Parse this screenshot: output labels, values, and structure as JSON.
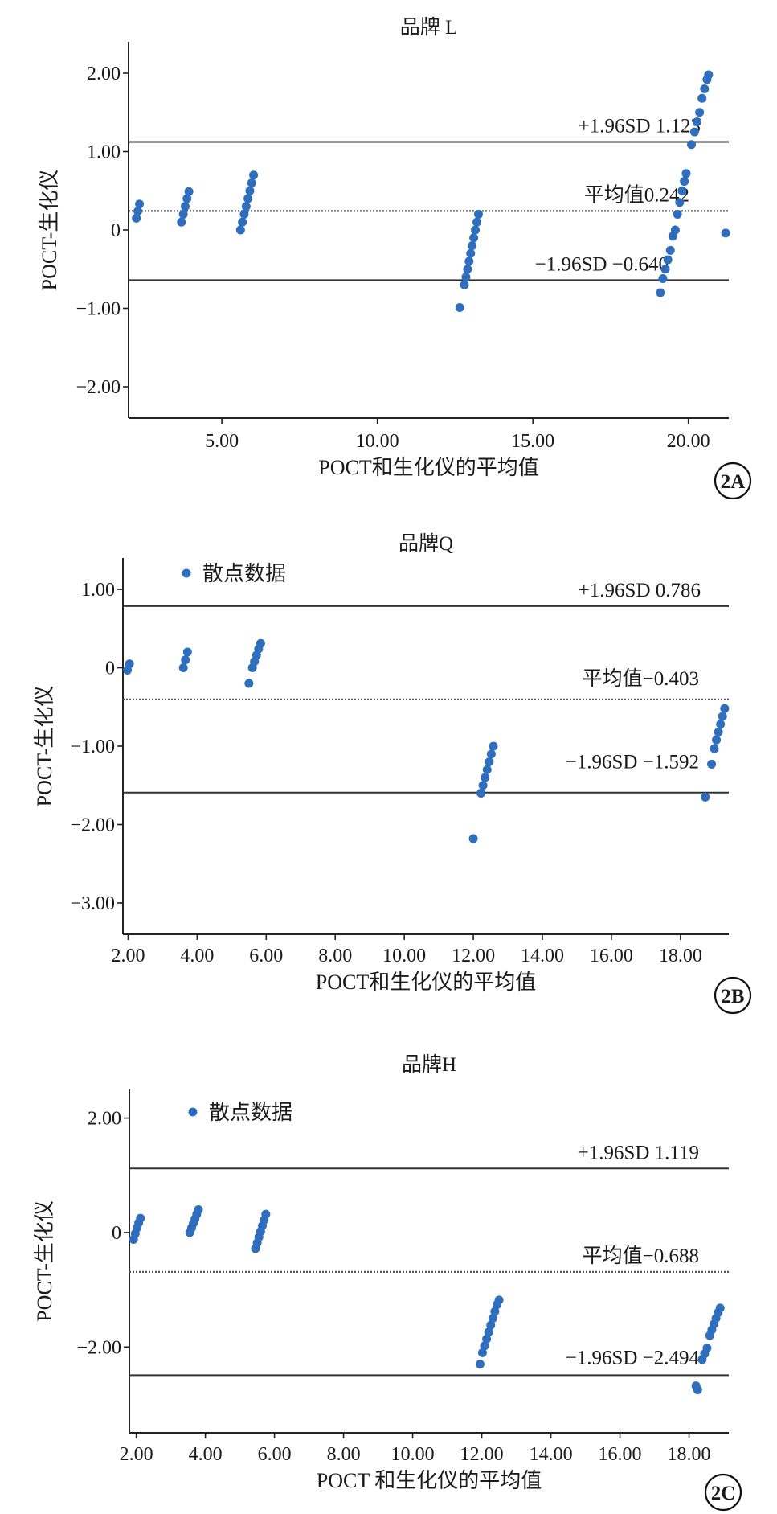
{
  "chart_data": [
    {
      "type": "scatter",
      "panel_label": "2A",
      "title": "品牌 L",
      "xlabel": "POCT和生化仪的平均值",
      "ylabel": "POCT-生化仪",
      "xlim": [
        2.0,
        21.3
      ],
      "ylim": [
        -2.4,
        2.4
      ],
      "xticks": [
        5,
        10,
        15,
        20
      ],
      "xtick_labels": [
        "5.00",
        "10.00",
        "15.00",
        "20.00"
      ],
      "yticks": [
        2,
        1,
        0,
        -1,
        -2
      ],
      "ytick_labels": [
        "2.00",
        "1.00",
        "0",
        "−1.00",
        "−2.00"
      ],
      "legend": "",
      "ref_lines": [
        {
          "label": "+1.96SD 1.123",
          "value": 1.123,
          "style": "solid"
        },
        {
          "label": "平均值0.242",
          "value": 0.242,
          "style": "dotted"
        },
        {
          "label": "−1.96SD −0.640",
          "value": -0.64,
          "style": "solid"
        }
      ],
      "color": "#2f6dbd",
      "points": [
        [
          2.25,
          0.15
        ],
        [
          2.3,
          0.24
        ],
        [
          2.35,
          0.33
        ],
        [
          3.7,
          0.1
        ],
        [
          3.76,
          0.2
        ],
        [
          3.82,
          0.3
        ],
        [
          3.88,
          0.4
        ],
        [
          3.94,
          0.49
        ],
        [
          5.6,
          0.0
        ],
        [
          5.66,
          0.1
        ],
        [
          5.72,
          0.2
        ],
        [
          5.78,
          0.3
        ],
        [
          5.84,
          0.4
        ],
        [
          5.9,
          0.5
        ],
        [
          5.96,
          0.6
        ],
        [
          6.02,
          0.7
        ],
        [
          12.65,
          -0.99
        ],
        [
          12.8,
          -0.7
        ],
        [
          12.85,
          -0.6
        ],
        [
          12.9,
          -0.5
        ],
        [
          12.95,
          -0.4
        ],
        [
          13.0,
          -0.3
        ],
        [
          13.05,
          -0.2
        ],
        [
          13.1,
          -0.1
        ],
        [
          13.15,
          0.0
        ],
        [
          13.2,
          0.1
        ],
        [
          13.25,
          0.2
        ],
        [
          19.1,
          -0.8
        ],
        [
          19.18,
          -0.62
        ],
        [
          19.26,
          -0.5
        ],
        [
          19.34,
          -0.38
        ],
        [
          19.42,
          -0.26
        ],
        [
          19.5,
          -0.08
        ],
        [
          19.58,
          0.0
        ],
        [
          19.65,
          0.2
        ],
        [
          19.72,
          0.35
        ],
        [
          19.8,
          0.5
        ],
        [
          19.87,
          0.62
        ],
        [
          19.93,
          0.72
        ],
        [
          20.1,
          1.09
        ],
        [
          20.2,
          1.25
        ],
        [
          20.28,
          1.38
        ],
        [
          20.36,
          1.5
        ],
        [
          20.44,
          1.68
        ],
        [
          20.52,
          1.8
        ],
        [
          20.6,
          1.92
        ],
        [
          20.65,
          1.98
        ],
        [
          21.2,
          -0.04
        ]
      ]
    },
    {
      "type": "scatter",
      "panel_label": "2B",
      "title": "品牌Q",
      "xlabel": "POCT和生化仪的平均值",
      "ylabel": "POCT-生化仪",
      "xlim": [
        1.85,
        19.4
      ],
      "ylim": [
        -3.4,
        1.4
      ],
      "xticks": [
        2,
        4,
        6,
        8,
        10,
        12,
        14,
        16,
        18
      ],
      "xtick_labels": [
        "2.00",
        "4.00",
        "6.00",
        "8.00",
        "10.00",
        "12.00",
        "14.00",
        "16.00",
        "18.00"
      ],
      "yticks": [
        1,
        0,
        -1,
        -2,
        -3
      ],
      "ytick_labels": [
        "1.00",
        "0",
        "−1.00",
        "−2.00",
        "−3.00"
      ],
      "legend": "散点数据",
      "ref_lines": [
        {
          "label": "+1.96SD 0.786",
          "value": 0.786,
          "style": "solid"
        },
        {
          "label": "平均值−0.403",
          "value": -0.403,
          "style": "dotted"
        },
        {
          "label": "−1.96SD −1.592",
          "value": -1.592,
          "style": "solid"
        }
      ],
      "color": "#2f6dbd",
      "points": [
        [
          1.98,
          -0.03
        ],
        [
          2.04,
          0.05
        ],
        [
          3.6,
          0.0
        ],
        [
          3.66,
          0.1
        ],
        [
          3.72,
          0.2
        ],
        [
          5.5,
          -0.2
        ],
        [
          5.6,
          0.0
        ],
        [
          5.66,
          0.08
        ],
        [
          5.72,
          0.16
        ],
        [
          5.78,
          0.24
        ],
        [
          5.84,
          0.31
        ],
        [
          12.0,
          -2.18
        ],
        [
          12.22,
          -1.6
        ],
        [
          12.28,
          -1.5
        ],
        [
          12.34,
          -1.4
        ],
        [
          12.4,
          -1.3
        ],
        [
          12.46,
          -1.2
        ],
        [
          12.52,
          -1.1
        ],
        [
          12.58,
          -1.0
        ],
        [
          18.72,
          -1.65
        ],
        [
          18.9,
          -1.23
        ],
        [
          18.98,
          -1.03
        ],
        [
          19.04,
          -0.92
        ],
        [
          19.1,
          -0.82
        ],
        [
          19.16,
          -0.72
        ],
        [
          19.22,
          -0.62
        ],
        [
          19.28,
          -0.52
        ]
      ]
    },
    {
      "type": "scatter",
      "panel_label": "2C",
      "title": "品牌H",
      "xlabel": "POCT 和生化仪的平均值",
      "ylabel": "POCT-生化仪",
      "xlim": [
        1.8,
        19.15
      ],
      "ylim": [
        -3.5,
        2.5
      ],
      "xticks": [
        2,
        4,
        6,
        8,
        10,
        12,
        14,
        16,
        18
      ],
      "xtick_labels": [
        "2.00",
        "4.00",
        "6.00",
        "8.00",
        "10.00",
        "12.00",
        "14.00",
        "16.00",
        "18.00"
      ],
      "yticks": [
        2,
        0,
        -2
      ],
      "ytick_labels": [
        "2.00",
        "0",
        "−2.00"
      ],
      "legend": "散点数据",
      "ref_lines": [
        {
          "label": "+1.96SD 1.119",
          "value": 1.119,
          "style": "solid"
        },
        {
          "label": "平均值−0.688",
          "value": -0.688,
          "style": "dotted"
        },
        {
          "label": "−1.96SD −2.494",
          "value": -2.494,
          "style": "solid"
        }
      ],
      "color": "#2f6dbd",
      "points": [
        [
          1.92,
          -0.12
        ],
        [
          1.97,
          -0.02
        ],
        [
          2.02,
          0.08
        ],
        [
          2.07,
          0.17
        ],
        [
          2.12,
          0.25
        ],
        [
          3.55,
          0.0
        ],
        [
          3.6,
          0.08
        ],
        [
          3.65,
          0.16
        ],
        [
          3.7,
          0.24
        ],
        [
          3.75,
          0.32
        ],
        [
          3.8,
          0.4
        ],
        [
          5.45,
          -0.28
        ],
        [
          5.5,
          -0.18
        ],
        [
          5.55,
          -0.08
        ],
        [
          5.6,
          0.02
        ],
        [
          5.65,
          0.12
        ],
        [
          5.7,
          0.22
        ],
        [
          5.75,
          0.32
        ],
        [
          11.95,
          -2.3
        ],
        [
          12.02,
          -2.1
        ],
        [
          12.08,
          -1.98
        ],
        [
          12.14,
          -1.86
        ],
        [
          12.2,
          -1.74
        ],
        [
          12.26,
          -1.62
        ],
        [
          12.32,
          -1.5
        ],
        [
          12.38,
          -1.38
        ],
        [
          12.44,
          -1.26
        ],
        [
          12.5,
          -1.18
        ],
        [
          18.2,
          -2.68
        ],
        [
          18.25,
          -2.75
        ],
        [
          18.38,
          -2.22
        ],
        [
          18.45,
          -2.12
        ],
        [
          18.52,
          -2.02
        ],
        [
          18.6,
          -1.8
        ],
        [
          18.66,
          -1.7
        ],
        [
          18.72,
          -1.6
        ],
        [
          18.78,
          -1.5
        ],
        [
          18.84,
          -1.4
        ],
        [
          18.9,
          -1.32
        ]
      ]
    }
  ]
}
